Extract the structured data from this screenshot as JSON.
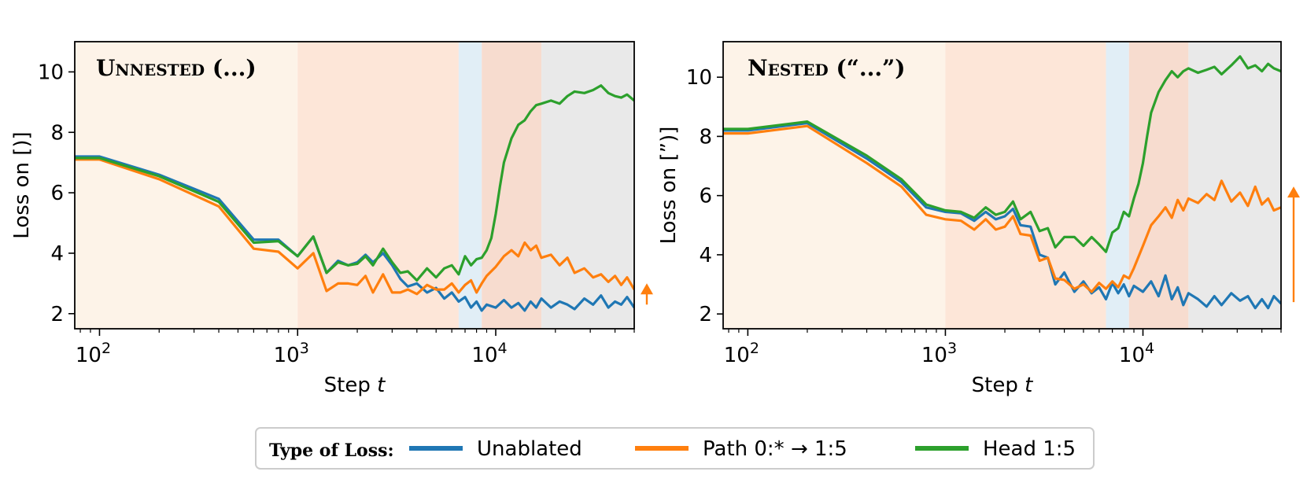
{
  "colors": {
    "unablated": "#1f77b4",
    "path": "#ff7f0e",
    "head": "#2ca02c",
    "phase1": "#fdf3e8",
    "phase2": "#fde6d8",
    "phase3": "#e1eef6",
    "phase4": "#f7dccf",
    "phase5": "#e9e9e9"
  },
  "legend": {
    "title": "Type of Loss:",
    "entries": [
      {
        "label": "Unablated",
        "color": "#1f77b4"
      },
      {
        "label": "Path 0:* → 1:5",
        "color": "#ff7f0e"
      },
      {
        "label": "Head 1:5",
        "color": "#2ca02c"
      }
    ]
  },
  "chart_data": [
    {
      "type": "line",
      "title": "Unnested (...)",
      "xlabel": "Step t",
      "ylabel": "Loss on [)]",
      "xscale": "log",
      "xlim": [
        75,
        50000
      ],
      "ylim": [
        1.5,
        11
      ],
      "yticks": [
        2,
        4,
        6,
        8,
        10
      ],
      "xticks": [
        {
          "value": 100,
          "base": "10",
          "exp": "2"
        },
        {
          "value": 1000,
          "base": "10",
          "exp": "3"
        },
        {
          "value": 10000,
          "base": "10",
          "exp": "4"
        }
      ],
      "phases": [
        {
          "from": 75,
          "to": 1000,
          "color": "phase1"
        },
        {
          "from": 1000,
          "to": 6500,
          "color": "phase2"
        },
        {
          "from": 6500,
          "to": 8500,
          "color": "phase3"
        },
        {
          "from": 8500,
          "to": 17000,
          "color": "phase4"
        },
        {
          "from": 17000,
          "to": 50000,
          "color": "phase5"
        }
      ],
      "arrow": {
        "x": 50000,
        "y_from": 2.3,
        "y_to": 2.9
      },
      "series": [
        {
          "name": "Unablated",
          "color": "unablated",
          "x": [
            75,
            100,
            200,
            400,
            600,
            800,
            1000,
            1200,
            1400,
            1600,
            1800,
            2000,
            2200,
            2400,
            2700,
            3000,
            3300,
            3600,
            4000,
            4500,
            5000,
            5500,
            6000,
            6500,
            7000,
            7500,
            8000,
            8500,
            9000,
            10000,
            11000,
            12000,
            13000,
            14000,
            15000,
            16000,
            17000,
            19000,
            21000,
            23000,
            25000,
            28000,
            31000,
            34000,
            37000,
            40000,
            43000,
            46000,
            50000
          ],
          "values": [
            7.2,
            7.2,
            6.6,
            5.8,
            4.45,
            4.45,
            3.9,
            4.55,
            3.35,
            3.75,
            3.6,
            3.7,
            3.95,
            3.7,
            4.0,
            3.6,
            3.15,
            2.9,
            3.0,
            2.7,
            2.85,
            2.5,
            2.7,
            2.4,
            2.55,
            2.2,
            2.4,
            2.1,
            2.3,
            2.2,
            2.45,
            2.2,
            2.35,
            2.1,
            2.4,
            2.2,
            2.5,
            2.2,
            2.4,
            2.3,
            2.15,
            2.5,
            2.3,
            2.6,
            2.2,
            2.4,
            2.3,
            2.55,
            2.2
          ]
        },
        {
          "name": "Path 0:* → 1:5",
          "color": "path",
          "x": [
            75,
            100,
            200,
            400,
            600,
            800,
            1000,
            1200,
            1400,
            1600,
            1800,
            2000,
            2200,
            2400,
            2700,
            3000,
            3300,
            3600,
            4000,
            4500,
            5000,
            5500,
            6000,
            6500,
            7000,
            7500,
            8000,
            8500,
            9000,
            10000,
            11000,
            12000,
            13000,
            14000,
            15000,
            16000,
            17000,
            19000,
            21000,
            23000,
            25000,
            28000,
            31000,
            34000,
            37000,
            40000,
            43000,
            46000,
            50000
          ],
          "values": [
            7.1,
            7.1,
            6.45,
            5.55,
            4.15,
            4.05,
            3.5,
            4.0,
            2.75,
            3.0,
            3.0,
            2.95,
            3.25,
            2.7,
            3.3,
            2.7,
            2.7,
            2.8,
            2.65,
            2.95,
            2.8,
            2.8,
            3.0,
            2.7,
            2.95,
            3.1,
            2.7,
            3.0,
            3.25,
            3.55,
            3.9,
            4.1,
            3.9,
            4.35,
            4.1,
            4.25,
            3.85,
            3.95,
            3.6,
            3.85,
            3.35,
            3.5,
            3.2,
            3.3,
            3.05,
            3.25,
            2.95,
            3.2,
            2.8
          ]
        },
        {
          "name": "Head 1:5",
          "color": "head",
          "x": [
            75,
            100,
            200,
            400,
            600,
            800,
            1000,
            1200,
            1400,
            1600,
            1800,
            2000,
            2200,
            2400,
            2700,
            3000,
            3300,
            3600,
            4000,
            4500,
            5000,
            5500,
            6000,
            6500,
            7000,
            7500,
            8000,
            8500,
            9000,
            9500,
            10000,
            10500,
            11000,
            12000,
            13000,
            14000,
            15000,
            16000,
            17000,
            19000,
            21000,
            23000,
            25000,
            28000,
            31000,
            34000,
            37000,
            40000,
            43000,
            46000,
            50000
          ],
          "values": [
            7.15,
            7.15,
            6.55,
            5.7,
            4.35,
            4.4,
            3.9,
            4.55,
            3.35,
            3.7,
            3.6,
            3.65,
            3.9,
            3.6,
            4.15,
            3.7,
            3.35,
            3.4,
            3.1,
            3.5,
            3.2,
            3.5,
            3.6,
            3.3,
            3.9,
            3.6,
            3.8,
            3.85,
            4.1,
            4.5,
            5.3,
            6.2,
            7.0,
            7.8,
            8.25,
            8.4,
            8.7,
            8.9,
            8.95,
            9.05,
            8.95,
            9.2,
            9.35,
            9.3,
            9.4,
            9.55,
            9.3,
            9.2,
            9.15,
            9.25,
            9.05
          ]
        }
      ]
    },
    {
      "type": "line",
      "title": "Nested (“...”)",
      "xlabel": "Step t",
      "ylabel": "Loss on [”)]",
      "xscale": "log",
      "xlim": [
        75,
        50000
      ],
      "ylim": [
        1.5,
        11.2
      ],
      "yticks": [
        2,
        4,
        6,
        8,
        10
      ],
      "xticks": [
        {
          "value": 100,
          "base": "10",
          "exp": "2"
        },
        {
          "value": 1000,
          "base": "10",
          "exp": "3"
        },
        {
          "value": 10000,
          "base": "10",
          "exp": "4"
        }
      ],
      "phases": [
        {
          "from": 75,
          "to": 1000,
          "color": "phase1"
        },
        {
          "from": 1000,
          "to": 6500,
          "color": "phase2"
        },
        {
          "from": 6500,
          "to": 8500,
          "color": "phase3"
        },
        {
          "from": 8500,
          "to": 17000,
          "color": "phase4"
        },
        {
          "from": 17000,
          "to": 50000,
          "color": "phase5"
        }
      ],
      "arrow": {
        "x": 50000,
        "y_from": 2.4,
        "y_to": 6.2
      },
      "series": [
        {
          "name": "Unablated",
          "color": "unablated",
          "x": [
            75,
            100,
            200,
            400,
            600,
            800,
            1000,
            1200,
            1400,
            1600,
            1800,
            2000,
            2200,
            2400,
            2700,
            3000,
            3300,
            3600,
            4000,
            4500,
            5000,
            5500,
            6000,
            6500,
            7000,
            7500,
            8000,
            8500,
            9000,
            10000,
            11000,
            12000,
            13000,
            14000,
            15000,
            16000,
            17000,
            19000,
            21000,
            23000,
            25000,
            28000,
            31000,
            34000,
            37000,
            40000,
            43000,
            46000,
            50000
          ],
          "values": [
            8.2,
            8.2,
            8.45,
            7.25,
            6.45,
            5.6,
            5.45,
            5.4,
            5.15,
            5.45,
            5.2,
            5.3,
            5.55,
            5.0,
            4.95,
            4.0,
            3.9,
            3.0,
            3.4,
            2.75,
            3.1,
            2.7,
            2.9,
            2.5,
            3.05,
            2.7,
            3.0,
            2.6,
            2.95,
            2.75,
            3.1,
            2.6,
            3.3,
            2.5,
            2.9,
            2.3,
            2.7,
            2.5,
            2.25,
            2.6,
            2.3,
            2.7,
            2.45,
            2.6,
            2.2,
            2.5,
            2.2,
            2.6,
            2.35
          ]
        },
        {
          "name": "Path 0:* → 1:5",
          "color": "path",
          "x": [
            75,
            100,
            200,
            400,
            600,
            800,
            1000,
            1200,
            1400,
            1600,
            1800,
            2000,
            2200,
            2400,
            2700,
            3000,
            3300,
            3600,
            4000,
            4500,
            5000,
            5500,
            6000,
            6500,
            7000,
            7500,
            8000,
            8500,
            9000,
            10000,
            11000,
            12000,
            13000,
            14000,
            15000,
            16000,
            17000,
            19000,
            21000,
            23000,
            25000,
            28000,
            31000,
            34000,
            37000,
            40000,
            43000,
            46000,
            50000
          ],
          "values": [
            8.1,
            8.1,
            8.35,
            7.1,
            6.3,
            5.35,
            5.2,
            5.15,
            4.85,
            5.2,
            4.85,
            4.95,
            5.3,
            4.7,
            4.65,
            3.8,
            3.9,
            3.2,
            3.15,
            2.85,
            3.0,
            2.75,
            3.05,
            2.85,
            3.1,
            2.9,
            3.3,
            3.2,
            3.55,
            4.3,
            5.0,
            5.3,
            5.6,
            5.25,
            5.85,
            5.5,
            5.9,
            5.75,
            6.05,
            5.85,
            6.5,
            5.8,
            6.1,
            5.65,
            6.3,
            5.7,
            5.9,
            5.5,
            5.6
          ]
        },
        {
          "name": "Head 1:5",
          "color": "head",
          "x": [
            75,
            100,
            200,
            400,
            600,
            800,
            1000,
            1200,
            1400,
            1600,
            1800,
            2000,
            2200,
            2400,
            2700,
            3000,
            3300,
            3600,
            4000,
            4500,
            5000,
            5500,
            6000,
            6500,
            7000,
            7500,
            8000,
            8500,
            9000,
            9500,
            10000,
            10500,
            11000,
            12000,
            13000,
            14000,
            15000,
            16000,
            17000,
            19000,
            21000,
            23000,
            25000,
            28000,
            31000,
            34000,
            37000,
            40000,
            43000,
            46000,
            50000
          ],
          "values": [
            8.25,
            8.25,
            8.5,
            7.35,
            6.55,
            5.7,
            5.5,
            5.45,
            5.25,
            5.6,
            5.35,
            5.45,
            5.8,
            5.2,
            5.45,
            4.8,
            4.9,
            4.25,
            4.6,
            4.6,
            4.3,
            4.6,
            4.35,
            4.1,
            4.75,
            4.9,
            5.45,
            5.3,
            5.9,
            6.4,
            7.1,
            8.0,
            8.8,
            9.5,
            9.9,
            10.2,
            10.0,
            10.2,
            10.3,
            10.15,
            10.25,
            10.35,
            10.1,
            10.4,
            10.7,
            10.3,
            10.4,
            10.2,
            10.45,
            10.3,
            10.2
          ]
        }
      ]
    }
  ]
}
